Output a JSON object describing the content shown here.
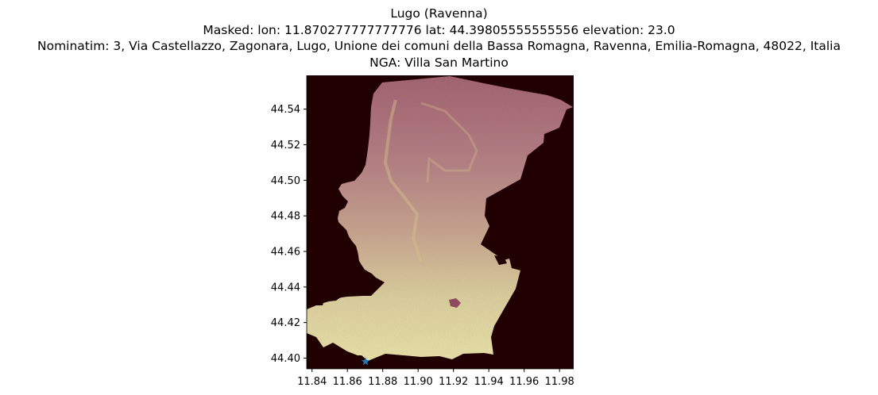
{
  "title": {
    "line1": "Lugo (Ravenna)",
    "line2": "Masked: lon: 11.870277777777776 lat: 44.39805555555556 elevation: 23.0",
    "line3": "Nominatim: 3, Via Castellazzo, Zagonara, Lugo, Unione dei comuni della Bassa Romagna, Ravenna, Emilia-Romagna, 48022, Italia",
    "line4": "NGA: Villa San Martino"
  },
  "chart_data": {
    "type": "heatmap",
    "xlim": [
      11.837,
      11.988
    ],
    "ylim": [
      44.394,
      44.559
    ],
    "xticks": [
      11.84,
      11.86,
      11.88,
      11.9,
      11.92,
      11.94,
      11.96,
      11.98
    ],
    "yticks": [
      44.4,
      44.42,
      44.44,
      44.46,
      44.48,
      44.5,
      44.52,
      44.54
    ],
    "marker": {
      "lon": 11.870277777777776,
      "lat": 44.39805555555556,
      "symbol": "star",
      "color": "#1f77b4"
    },
    "colors": {
      "background": "#200000",
      "high_elevation": "#a05e6a",
      "low_elevation": "#e6e0a2"
    },
    "colormap": "pink-cream"
  }
}
